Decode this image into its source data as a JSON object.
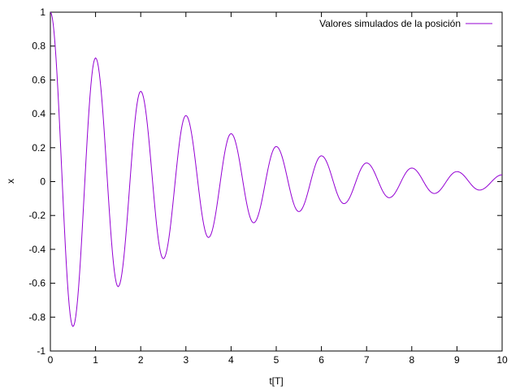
{
  "chart_data": {
    "type": "line",
    "xlabel": "t[T]",
    "ylabel": "x",
    "xlim": [
      0,
      10
    ],
    "ylim": [
      -1,
      1
    ],
    "xticks": [
      "0",
      "1",
      "2",
      "3",
      "4",
      "5",
      "6",
      "7",
      "8",
      "9",
      "10"
    ],
    "yticks": [
      "-1",
      "-0.8",
      "-0.6",
      "-0.4",
      "-0.2",
      "0",
      "0.2",
      "0.4",
      "0.6",
      "0.8",
      "1"
    ],
    "grid": false,
    "legend_position": "top-right",
    "series": [
      {
        "name": "Valores simulados de la posición",
        "color": "#9400d3",
        "points": [
          [
            0,
            1.0
          ],
          [
            0.5,
            -0.855
          ],
          [
            1,
            0.73
          ],
          [
            1.5,
            -0.62
          ],
          [
            2,
            0.533
          ],
          [
            2.5,
            -0.455
          ],
          [
            3,
            0.39
          ],
          [
            3.5,
            -0.33
          ],
          [
            4,
            0.283
          ],
          [
            4.5,
            -0.243
          ],
          [
            5,
            0.207
          ],
          [
            5.5,
            -0.177
          ],
          [
            6,
            0.152
          ],
          [
            6.5,
            -0.13
          ],
          [
            7,
            0.11
          ],
          [
            7.5,
            -0.095
          ],
          [
            8,
            0.08
          ],
          [
            8.5,
            -0.07
          ],
          [
            9,
            0.059
          ],
          [
            9.5,
            -0.05
          ],
          [
            10,
            0.04
          ]
        ]
      }
    ]
  }
}
